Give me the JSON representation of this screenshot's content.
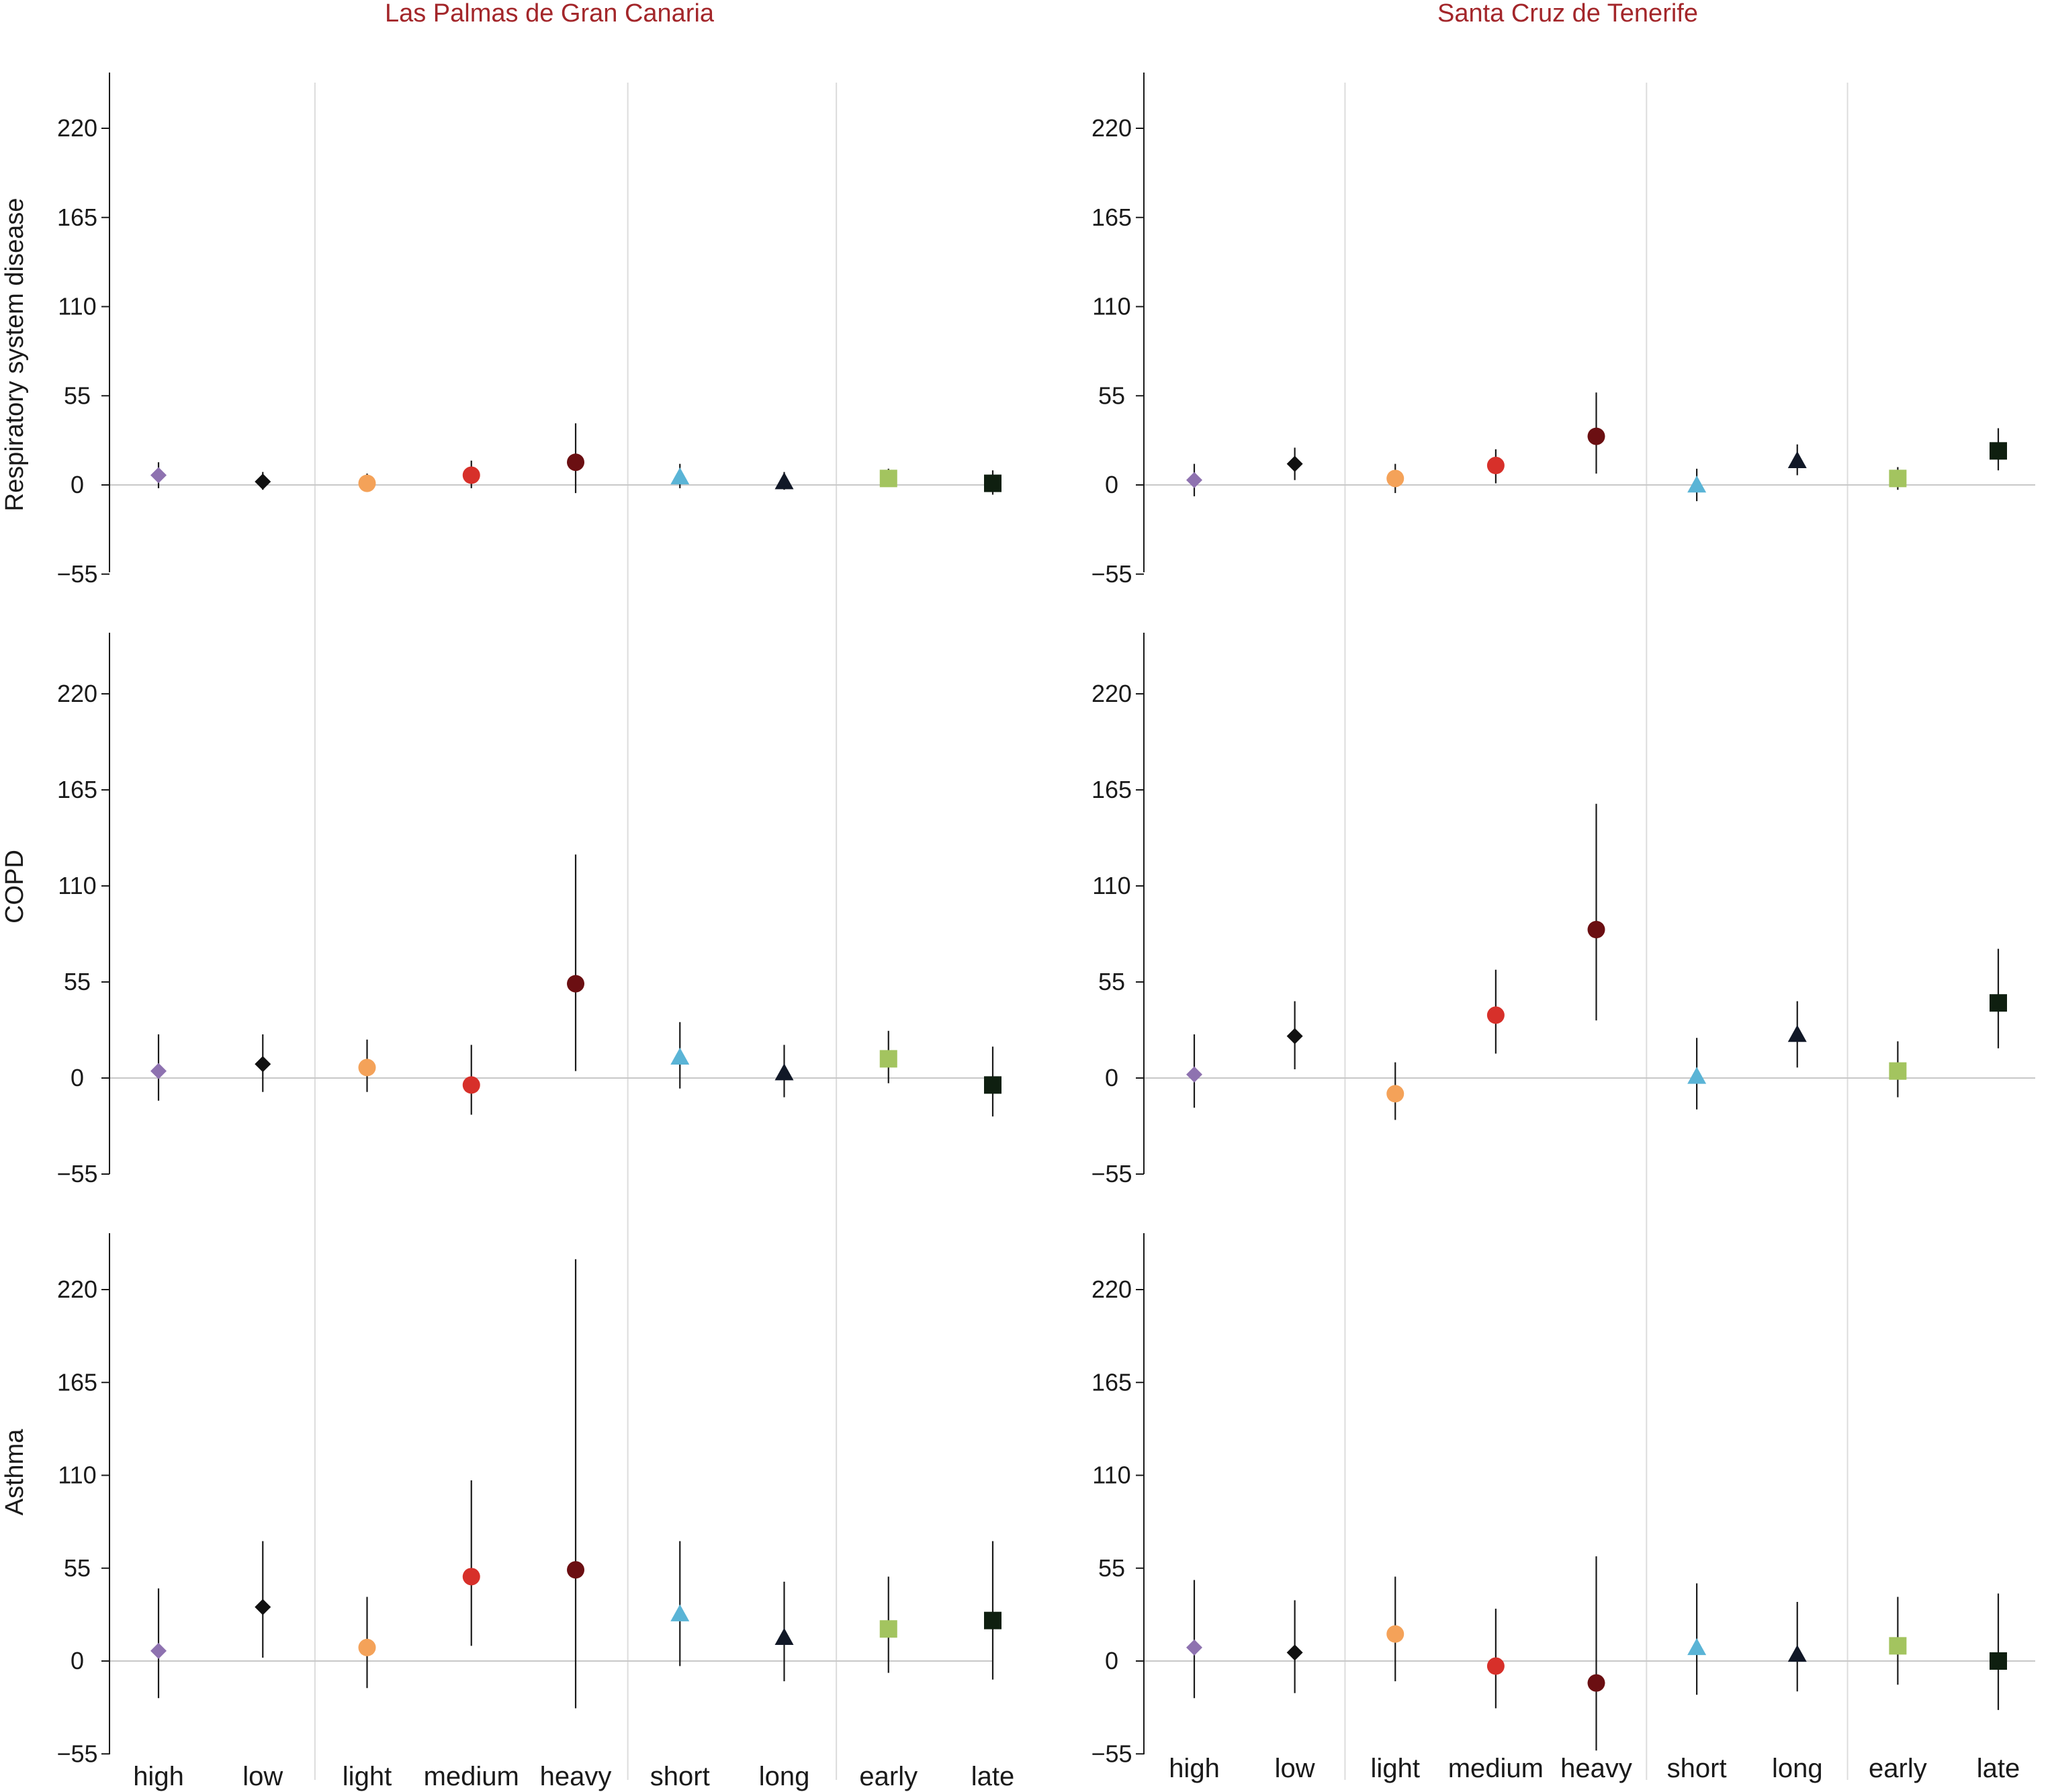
{
  "chart_data": {
    "type": "scatter",
    "col_titles": [
      "Las Palmas de Gran Canaria",
      "Santa Cruz de Tenerife"
    ],
    "row_labels": [
      "Respiratory system disease",
      "COPD",
      "Asthma"
    ],
    "categories": [
      "high",
      "low",
      "light",
      "medium",
      "heavy",
      "short",
      "long",
      "early",
      "late"
    ],
    "ylim": [
      -55,
      240
    ],
    "yticks": [
      -55,
      0,
      55,
      110,
      165,
      220
    ],
    "ytick_labels": [
      "−55",
      "0",
      "55",
      "110",
      "165",
      "220"
    ],
    "grid": false,
    "group_separators_after": [
      1,
      4,
      6
    ],
    "markers": [
      {
        "shape": "diamond",
        "color": "#8e72b0"
      },
      {
        "shape": "diamond",
        "color": "#111111"
      },
      {
        "shape": "circle",
        "color": "#f4a259"
      },
      {
        "shape": "circle",
        "color": "#d7302a"
      },
      {
        "shape": "circle",
        "color": "#6b0f12"
      },
      {
        "shape": "triangle",
        "color": "#5ab4d6"
      },
      {
        "shape": "triangle",
        "color": "#111827"
      },
      {
        "shape": "square",
        "color": "#a3c45f"
      },
      {
        "shape": "square",
        "color": "#0f1f10"
      }
    ],
    "panels": [
      {
        "row": 0,
        "col": 0,
        "points": [
          {
            "y": 6,
            "lo": -2,
            "hi": 14
          },
          {
            "y": 2,
            "lo": -3,
            "hi": 8
          },
          {
            "y": 1,
            "lo": -4,
            "hi": 7
          },
          {
            "y": 6,
            "lo": -2,
            "hi": 15
          },
          {
            "y": 14,
            "lo": -5,
            "hi": 38
          },
          {
            "y": 5,
            "lo": -2,
            "hi": 13
          },
          {
            "y": 2,
            "lo": -3,
            "hi": 8
          },
          {
            "y": 4,
            "lo": -1,
            "hi": 10
          },
          {
            "y": 1,
            "lo": -6,
            "hi": 9
          }
        ]
      },
      {
        "row": 0,
        "col": 1,
        "points": [
          {
            "y": 3,
            "lo": -7,
            "hi": 13
          },
          {
            "y": 13,
            "lo": 3,
            "hi": 23
          },
          {
            "y": 4,
            "lo": -5,
            "hi": 13
          },
          {
            "y": 12,
            "lo": 1,
            "hi": 22
          },
          {
            "y": 30,
            "lo": 7,
            "hi": 57
          },
          {
            "y": 0,
            "lo": -10,
            "hi": 10
          },
          {
            "y": 15,
            "lo": 6,
            "hi": 25
          },
          {
            "y": 4,
            "lo": -3,
            "hi": 11
          },
          {
            "y": 21,
            "lo": 9,
            "hi": 35
          }
        ]
      },
      {
        "row": 1,
        "col": 0,
        "points": [
          {
            "y": 4,
            "lo": -13,
            "hi": 25
          },
          {
            "y": 8,
            "lo": -8,
            "hi": 25
          },
          {
            "y": 6,
            "lo": -8,
            "hi": 22
          },
          {
            "y": -4,
            "lo": -21,
            "hi": 19
          },
          {
            "y": 54,
            "lo": 4,
            "hi": 128
          },
          {
            "y": 12,
            "lo": -6,
            "hi": 32
          },
          {
            "y": 3,
            "lo": -11,
            "hi": 19
          },
          {
            "y": 11,
            "lo": -3,
            "hi": 27
          },
          {
            "y": -4,
            "lo": -22,
            "hi": 18
          }
        ]
      },
      {
        "row": 1,
        "col": 1,
        "points": [
          {
            "y": 2,
            "lo": -17,
            "hi": 25
          },
          {
            "y": 24,
            "lo": 5,
            "hi": 44
          },
          {
            "y": -9,
            "lo": -24,
            "hi": 9
          },
          {
            "y": 36,
            "lo": 14,
            "hi": 62
          },
          {
            "y": 85,
            "lo": 33,
            "hi": 157
          },
          {
            "y": 1,
            "lo": -18,
            "hi": 23
          },
          {
            "y": 25,
            "lo": 6,
            "hi": 44
          },
          {
            "y": 4,
            "lo": -11,
            "hi": 21
          },
          {
            "y": 43,
            "lo": 17,
            "hi": 74
          }
        ]
      },
      {
        "row": 2,
        "col": 0,
        "points": [
          {
            "y": 6,
            "lo": -22,
            "hi": 43
          },
          {
            "y": 32,
            "lo": 2,
            "hi": 71
          },
          {
            "y": 8,
            "lo": -16,
            "hi": 38
          },
          {
            "y": 50,
            "lo": 9,
            "hi": 107
          },
          {
            "y": 54,
            "lo": -28,
            "hi": 238
          },
          {
            "y": 28,
            "lo": -3,
            "hi": 71
          },
          {
            "y": 14,
            "lo": -12,
            "hi": 47
          },
          {
            "y": 19,
            "lo": -7,
            "hi": 50
          },
          {
            "y": 24,
            "lo": -11,
            "hi": 71
          }
        ]
      },
      {
        "row": 2,
        "col": 1,
        "points": [
          {
            "y": 8,
            "lo": -22,
            "hi": 48
          },
          {
            "y": 5,
            "lo": -19,
            "hi": 36
          },
          {
            "y": 16,
            "lo": -12,
            "hi": 50
          },
          {
            "y": -3,
            "lo": -28,
            "hi": 31
          },
          {
            "y": -13,
            "lo": -53,
            "hi": 62
          },
          {
            "y": 8,
            "lo": -20,
            "hi": 46
          },
          {
            "y": 4,
            "lo": -18,
            "hi": 35
          },
          {
            "y": 9,
            "lo": -14,
            "hi": 38
          },
          {
            "y": 0,
            "lo": -29,
            "hi": 40
          }
        ]
      }
    ]
  }
}
